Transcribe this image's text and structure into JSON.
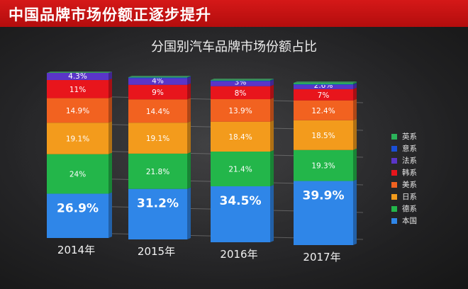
{
  "banner": {
    "title": "中国品牌市场份额正逐步提升"
  },
  "chart_data": {
    "type": "bar",
    "stacked": true,
    "title": "分国别汽车品牌市场份额占比",
    "categories": [
      "2014年",
      "2015年",
      "2016年",
      "2017年"
    ],
    "series": [
      {
        "name": "本国",
        "color": "#2f86e8",
        "values": [
          26.9,
          31.2,
          34.5,
          39.9
        ],
        "labels": [
          "26.9%",
          "31.2%",
          "34.5%",
          "39.9%"
        ]
      },
      {
        "name": "德系",
        "color": "#23b64a",
        "values": [
          24,
          21.8,
          21.4,
          19.3
        ],
        "labels": [
          "24%",
          "21.8%",
          "21.4%",
          "19.3%"
        ]
      },
      {
        "name": "日系",
        "color": "#f39b1c",
        "values": [
          19.1,
          19.1,
          18.4,
          18.5
        ],
        "labels": [
          "19.1%",
          "19.1%",
          "18.4%",
          "18.5%"
        ]
      },
      {
        "name": "美系",
        "color": "#f26220",
        "values": [
          14.9,
          14.4,
          13.9,
          12.4
        ],
        "labels": [
          "14.9%",
          "14.4%",
          "13.9%",
          "12.4%"
        ]
      },
      {
        "name": "韩系",
        "color": "#e8151c",
        "values": [
          11,
          9,
          8,
          7
        ],
        "labels": [
          "11%",
          "9%",
          "8%",
          "7%"
        ]
      },
      {
        "name": "法系",
        "color": "#5a35c8",
        "values": [
          4.3,
          4,
          3,
          2.6
        ],
        "labels": [
          "4.3%",
          "4%",
          "3%",
          "2.6%"
        ]
      },
      {
        "name": "意系",
        "color": "#1a4fd6",
        "values": [
          0,
          0.5,
          0.5,
          0.5
        ],
        "labels": [
          "",
          "",
          "",
          ""
        ]
      },
      {
        "name": "英系",
        "color": "#2bb35a",
        "values": [
          0,
          0.2,
          0.3,
          0.8
        ],
        "labels": [
          "",
          "",
          "",
          ""
        ]
      }
    ],
    "legend_position": "right",
    "ylim": [
      0,
      100
    ],
    "grid": true
  }
}
